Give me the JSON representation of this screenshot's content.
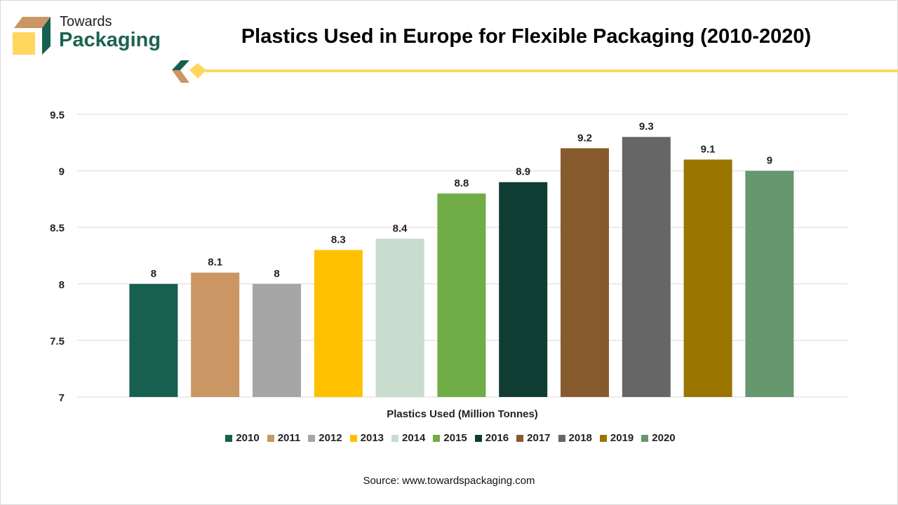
{
  "logo": {
    "line1": "Towards",
    "line2": "Packaging"
  },
  "source": "Source: www.towardspackaging.com",
  "chart_data": {
    "type": "bar",
    "title": "Plastics Used in Europe for Flexible Packaging (2010-2020)",
    "xlabel": "Plastics Used (Million Tonnes)",
    "ylabel": "",
    "ylim": [
      7,
      9.5
    ],
    "yticks": [
      "7",
      "7.5",
      "8",
      "8.5",
      "9",
      "9.5"
    ],
    "grid": true,
    "legend_position": "bottom",
    "series": [
      {
        "name": "2010",
        "value": 8,
        "label": "8",
        "color": "#17604f"
      },
      {
        "name": "2011",
        "value": 8.1,
        "label": "8.1",
        "color": "#c99664"
      },
      {
        "name": "2012",
        "value": 8,
        "label": "8",
        "color": "#a6a6a6"
      },
      {
        "name": "2013",
        "value": 8.3,
        "label": "8.3",
        "color": "#ffc000"
      },
      {
        "name": "2014",
        "value": 8.4,
        "label": "8.4",
        "color": "#c8dccd"
      },
      {
        "name": "2015",
        "value": 8.8,
        "label": "8.8",
        "color": "#70ad47"
      },
      {
        "name": "2016",
        "value": 8.9,
        "label": "8.9",
        "color": "#0f3d33"
      },
      {
        "name": "2017",
        "value": 9.2,
        "label": "9.2",
        "color": "#875a2e"
      },
      {
        "name": "2018",
        "value": 9.3,
        "label": "9.3",
        "color": "#666666"
      },
      {
        "name": "2019",
        "value": 9.1,
        "label": "9.1",
        "color": "#9a7500"
      },
      {
        "name": "2020",
        "value": 9,
        "label": "9",
        "color": "#66976f"
      }
    ]
  }
}
